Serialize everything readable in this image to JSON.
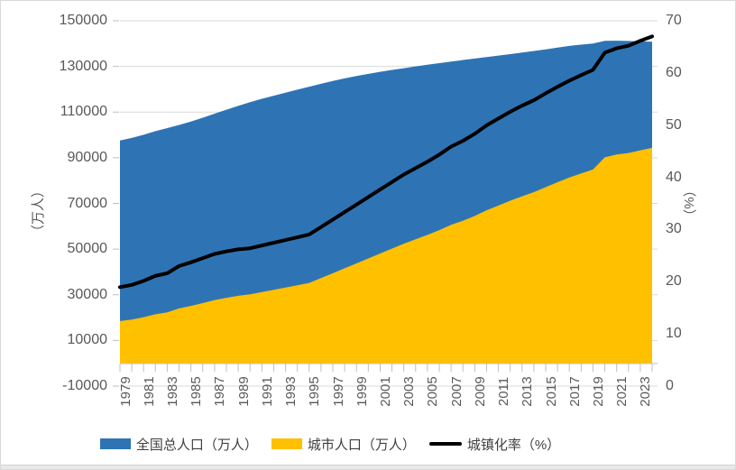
{
  "chart_data": {
    "type": "area",
    "description": "Combo chart: two overlaid area series (left axis, 万人) and one line series (right axis, %), years 1979-2024",
    "x": [
      1979,
      1980,
      1981,
      1982,
      1983,
      1984,
      1985,
      1986,
      1987,
      1988,
      1989,
      1990,
      1991,
      1992,
      1993,
      1994,
      1995,
      1996,
      1997,
      1998,
      1999,
      2000,
      2001,
      2002,
      2003,
      2004,
      2005,
      2006,
      2007,
      2008,
      2009,
      2010,
      2011,
      2012,
      2013,
      2014,
      2015,
      2016,
      2017,
      2018,
      2019,
      2020,
      2021,
      2022,
      2023,
      2024
    ],
    "series": [
      {
        "name": "全国总人口（万人）",
        "type": "area",
        "axis": "left",
        "color": "#2E74B5",
        "values": [
          97542,
          98705,
          100072,
          101654,
          103008,
          104357,
          105851,
          107507,
          109300,
          111026,
          112704,
          114333,
          115823,
          117171,
          118517,
          119850,
          121121,
          122389,
          123626,
          124761,
          125786,
          126743,
          127627,
          128453,
          129227,
          129988,
          130756,
          131448,
          132129,
          132802,
          133450,
          134091,
          134735,
          135404,
          136072,
          136782,
          137462,
          138271,
          139008,
          139538,
          140005,
          141212,
          141260,
          141175,
          140967,
          140828
        ]
      },
      {
        "name": "城市人口（万人）",
        "type": "area",
        "axis": "left",
        "color": "#FFC000",
        "values": [
          18495,
          19140,
          20171,
          21480,
          22274,
          24017,
          25094,
          26366,
          27674,
          28661,
          29540,
          30195,
          31203,
          32175,
          33173,
          34169,
          35174,
          37304,
          39449,
          41608,
          43748,
          45906,
          48064,
          50212,
          52376,
          54283,
          56212,
          58288,
          60633,
          62403,
          64512,
          66978,
          69079,
          71182,
          73111,
          74916,
          77116,
          79298,
          81347,
          83137,
          84843,
          90220,
          91425,
          92071,
          93267,
          94350
        ]
      },
      {
        "name": "城镇化率（%）",
        "type": "line",
        "axis": "right",
        "color": "#000000",
        "values": [
          18.96,
          19.39,
          20.16,
          21.13,
          21.62,
          23.01,
          23.71,
          24.52,
          25.32,
          25.81,
          26.21,
          26.41,
          26.94,
          27.46,
          27.99,
          28.51,
          29.04,
          30.48,
          31.91,
          33.35,
          34.78,
          36.22,
          37.66,
          39.09,
          40.53,
          41.76,
          42.99,
          44.34,
          45.89,
          46.99,
          48.34,
          49.95,
          51.27,
          52.57,
          53.73,
          54.77,
          56.1,
          57.35,
          58.52,
          59.58,
          60.6,
          63.89,
          64.72,
          65.22,
          66.16,
          67.0
        ]
      }
    ],
    "left_axis": {
      "title": "（万人）",
      "min": -10000,
      "max": 150000,
      "step": 20000,
      "tick_labels": [
        "150000",
        "130000",
        "110000",
        "90000",
        "70000",
        "50000",
        "30000",
        "10000",
        "-10000"
      ]
    },
    "right_axis": {
      "title": "（%）",
      "min": 0,
      "max": 70,
      "step": 10,
      "tick_labels": [
        "70",
        "60",
        "50",
        "40",
        "30",
        "20",
        "10",
        "0"
      ]
    },
    "x_axis": {
      "tick_labels": [
        "1979",
        "1981",
        "1983",
        "1985",
        "1987",
        "1989",
        "1991",
        "1993",
        "1995",
        "1997",
        "1999",
        "2001",
        "2003",
        "2005",
        "2007",
        "2009",
        "2011",
        "2013",
        "2015",
        "2017",
        "2019",
        "2021",
        "2023"
      ]
    },
    "area_baseline_value": 0,
    "grid": true,
    "legend_position": "bottom",
    "colors": {
      "gridline": "#D9D9D9",
      "axis_line": "#BFBFBF",
      "axis_text": "#595959",
      "legend_text": "#404040",
      "background": "#FFFFFF",
      "border": "#D9D9D9"
    }
  }
}
